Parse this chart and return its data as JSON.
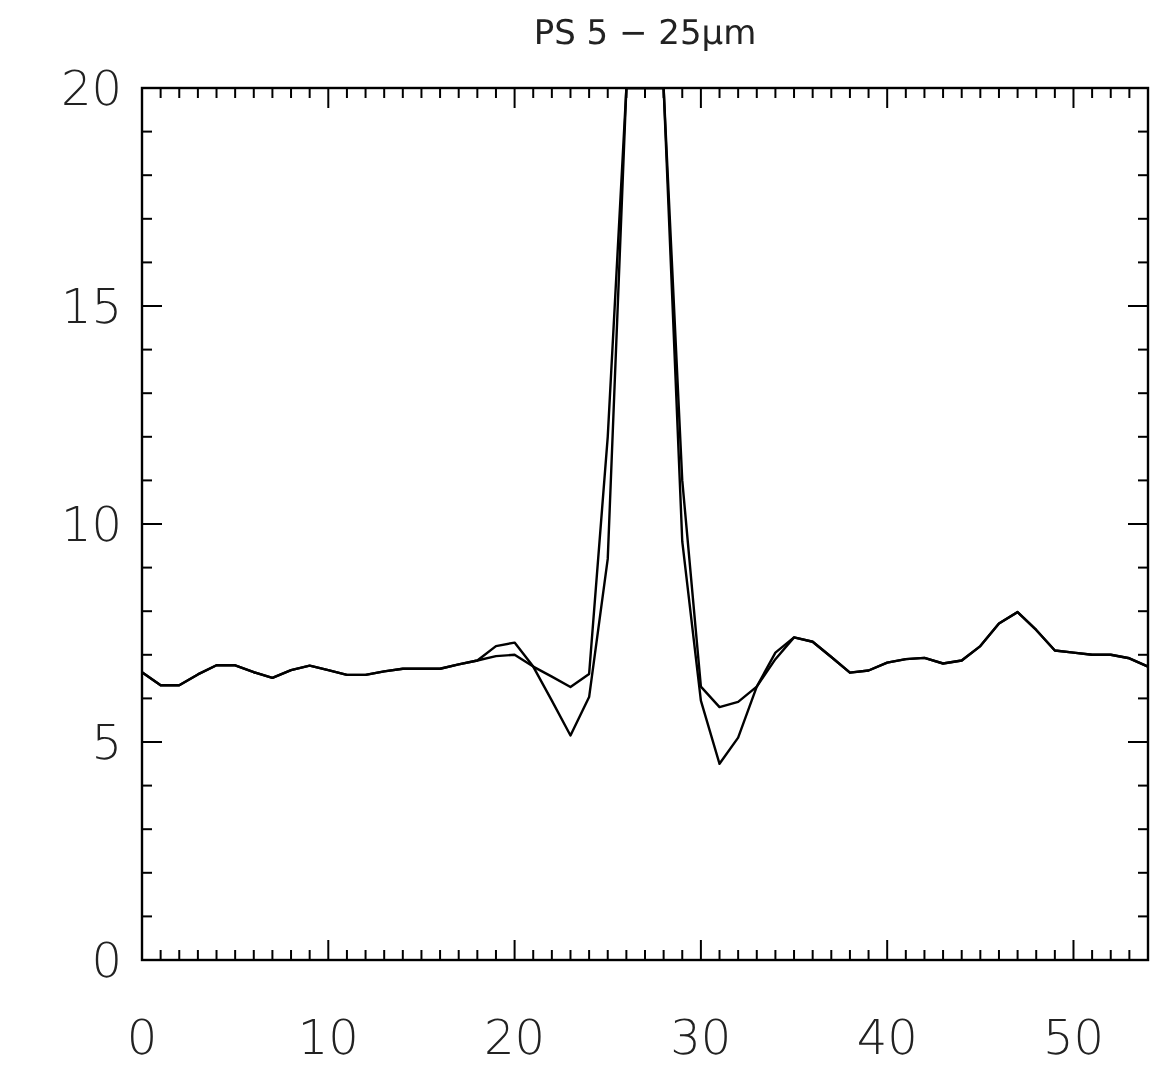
{
  "chart_data": {
    "type": "line",
    "title": "PS 5 − 25µm",
    "x": [
      0,
      1,
      2,
      3,
      4,
      5,
      6,
      7,
      8,
      9,
      10,
      11,
      12,
      13,
      14,
      15,
      16,
      17,
      18,
      19,
      20,
      21,
      22,
      23,
      24,
      25,
      26,
      27,
      28,
      29,
      30,
      31,
      32,
      33,
      34,
      35,
      36,
      37,
      38,
      39,
      40,
      41,
      42,
      43,
      44,
      45,
      46,
      47,
      48,
      49,
      50,
      51,
      52,
      53,
      54
    ],
    "series": [
      {
        "color": "#000000",
        "values": [
          6.6,
          6.3,
          6.3,
          6.55,
          6.76,
          6.76,
          6.6,
          6.47,
          6.65,
          6.75,
          6.65,
          6.54,
          6.54,
          6.62,
          6.68,
          6.68,
          6.68,
          6.78,
          6.87,
          7.2,
          7.28,
          6.73,
          5.95,
          5.15,
          6.03,
          9.2,
          20,
          20,
          20,
          9.6,
          5.95,
          4.5,
          5.1,
          6.27,
          7.05,
          7.4,
          7.3,
          6.95,
          6.59,
          6.64,
          6.82,
          6.9,
          6.93,
          6.8,
          6.87,
          7.2,
          7.72,
          7.98,
          7.57,
          7.1,
          7.05,
          7.0,
          7.0,
          6.92,
          6.73
        ]
      },
      {
        "color": "#000000",
        "values": [
          6.6,
          6.3,
          6.3,
          6.55,
          6.76,
          6.76,
          6.6,
          6.47,
          6.65,
          6.75,
          6.65,
          6.54,
          6.54,
          6.62,
          6.68,
          6.68,
          6.68,
          6.78,
          6.87,
          6.97,
          7.0,
          6.73,
          6.5,
          6.26,
          6.56,
          12,
          20,
          20,
          20,
          11,
          6.27,
          5.8,
          5.92,
          6.27,
          6.9,
          7.4,
          7.3,
          6.95,
          6.59,
          6.64,
          6.82,
          6.9,
          6.93,
          6.8,
          6.87,
          7.2,
          7.72,
          7.98,
          7.57,
          7.1,
          7.05,
          7.0,
          7.0,
          6.92,
          6.73
        ]
      }
    ],
    "xlim": [
      0,
      54
    ],
    "ylim": [
      0,
      20
    ],
    "xticks": [
      0,
      {
        "value": 1,
        "label": null
      },
      {
        "value": 2,
        "label": null
      },
      {
        "value": 3,
        "label": null
      },
      {
        "value": 4,
        "label": null
      },
      {
        "value": 5,
        "label": null
      },
      {
        "value": 6,
        "label": null
      },
      {
        "value": 7,
        "label": null
      },
      {
        "value": 8,
        "label": null
      },
      {
        "value": 9,
        "label": null
      },
      10,
      {
        "value": 11,
        "label": null
      },
      {
        "value": 12,
        "label": null
      },
      {
        "value": 13,
        "label": null
      },
      {
        "value": 14,
        "label": null
      },
      {
        "value": 15,
        "label": null
      },
      {
        "value": 16,
        "label": null
      },
      {
        "value": 17,
        "label": null
      },
      {
        "value": 18,
        "label": null
      },
      {
        "value": 19,
        "label": null
      },
      20,
      {
        "value": 21,
        "label": null
      },
      {
        "value": 22,
        "label": null
      },
      {
        "value": 23,
        "label": null
      },
      {
        "value": 24,
        "label": null
      },
      {
        "value": 25,
        "label": null
      },
      {
        "value": 26,
        "label": null
      },
      {
        "value": 27,
        "label": null
      },
      {
        "value": 28,
        "label": null
      },
      {
        "value": 29,
        "label": null
      },
      30,
      {
        "value": 31,
        "label": null
      },
      {
        "value": 32,
        "label": null
      },
      {
        "value": 33,
        "label": null
      },
      {
        "value": 34,
        "label": null
      },
      {
        "value": 35,
        "label": null
      },
      {
        "value": 36,
        "label": null
      },
      {
        "value": 37,
        "label": null
      },
      {
        "value": 38,
        "label": null
      },
      {
        "value": 39,
        "label": null
      },
      40,
      {
        "value": 41,
        "label": null
      },
      {
        "value": 42,
        "label": null
      },
      {
        "value": 43,
        "label": null
      },
      {
        "value": 44,
        "label": null
      },
      {
        "value": 45,
        "label": null
      },
      {
        "value": 46,
        "label": null
      },
      {
        "value": 47,
        "label": null
      },
      {
        "value": 48,
        "label": null
      },
      {
        "value": 49,
        "label": null
      },
      50,
      {
        "value": 51,
        "label": null
      },
      {
        "value": 52,
        "label": null
      },
      {
        "value": 53,
        "label": null
      }
    ],
    "yticks": [
      0,
      {
        "value": 1,
        "label": null
      },
      {
        "value": 2,
        "label": null
      },
      {
        "value": 3,
        "label": null
      },
      {
        "value": 4,
        "label": null
      },
      5,
      {
        "value": 6,
        "label": null
      },
      {
        "value": 7,
        "label": null
      },
      {
        "value": 8,
        "label": null
      },
      {
        "value": 9,
        "label": null
      },
      10,
      {
        "value": 11,
        "label": null
      },
      {
        "value": 12,
        "label": null
      },
      {
        "value": 13,
        "label": null
      },
      {
        "value": 14,
        "label": null
      },
      15,
      {
        "value": 16,
        "label": null
      },
      {
        "value": 17,
        "label": null
      },
      {
        "value": 18,
        "label": null
      },
      {
        "value": 19,
        "label": null
      },
      20
    ],
    "marker": "none",
    "line_style": "solid",
    "grid": false
  }
}
